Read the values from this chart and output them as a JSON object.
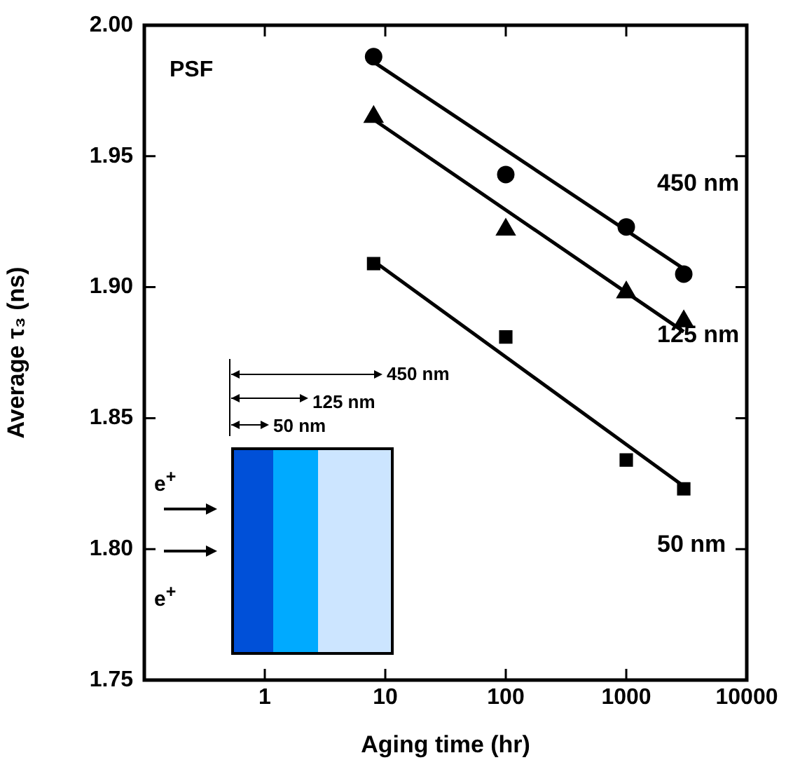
{
  "chart_data": {
    "type": "scatter",
    "xlabel": "Aging time (hr)",
    "ylabel": "Average τ₃ (ns)",
    "log": "x",
    "xlim": [
      0.1,
      10000
    ],
    "xticks": [
      {
        "value": 0.1,
        "label": null
      },
      1,
      10,
      100,
      1000,
      10000
    ],
    "ylim": [
      1.75,
      2.0
    ],
    "yticks": [
      1.75,
      {
        "value": 1.8,
        "label": "1.80"
      },
      1.85,
      {
        "value": 1.9,
        "label": "1.90"
      },
      1.95,
      {
        "value": 2.0,
        "label": "2.00"
      }
    ],
    "grid": false,
    "legend": "right",
    "series": [
      {
        "name": "450 nm",
        "marker": "circle",
        "color": "#000000",
        "x": [
          8,
          100,
          1000,
          3000
        ],
        "values": [
          1.988,
          1.943,
          1.923,
          1.905
        ]
      },
      {
        "name": "125 nm",
        "marker": "triangle",
        "color": "#000000",
        "x": [
          8,
          100,
          1000,
          3000
        ],
        "values": [
          1.965,
          1.922,
          1.898,
          1.887
        ]
      },
      {
        "name": "50 nm",
        "marker": "square",
        "color": "#000000",
        "x": [
          8,
          100,
          1000,
          3000
        ],
        "values": [
          1.909,
          1.881,
          1.834,
          1.823
        ]
      },
      {
        "type": "line",
        "marker": "none",
        "color": "#000000",
        "x": [
          8,
          3000
        ],
        "values": [
          1.986,
          1.907
        ]
      },
      {
        "type": "line",
        "marker": "none",
        "color": "#000000",
        "x": [
          8,
          1000,
          3000
        ],
        "values": [
          1.964,
          1.898,
          1.883
        ]
      },
      {
        "type": "line",
        "marker": "none",
        "color": "#000000",
        "x": [
          8,
          3000
        ],
        "values": [
          1.91,
          1.824
        ]
      }
    ],
    "annotations": [
      "PSF",
      "450 nm",
      "125 nm",
      "50 nm",
      "e$^{+}$",
      "e$^{+}$"
    ]
  }
}
